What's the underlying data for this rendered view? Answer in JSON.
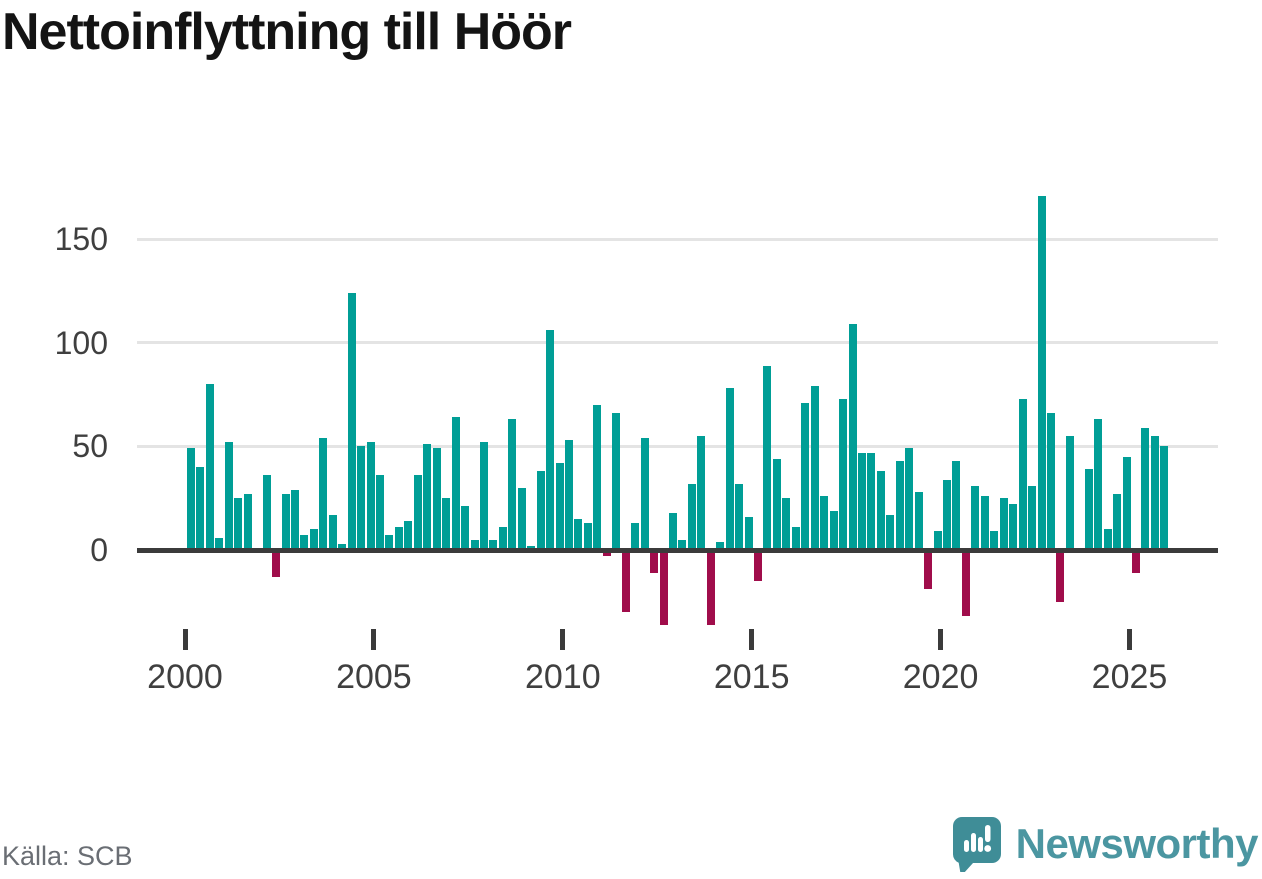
{
  "title": "Nettoinflyttning till Höör",
  "source": "Källa: SCB",
  "branding": {
    "name": "Newsworthy",
    "icon": "speech-bubble-bar-chart-exclamation-icon",
    "text_color": "#4b96a1",
    "bubble_color": "#3f8d97"
  },
  "colors": {
    "positive_bar": "#009e96",
    "negative_bar": "#a00d4b",
    "axis": "#3b3b3b",
    "gridline": "#e4e4e4",
    "tick_label": "#3f3f3f"
  },
  "chart_data": {
    "type": "bar",
    "title": "Nettoinflyttning till Höör",
    "x_unit": "quarter",
    "start_year": 2000,
    "quarters_per_year": 4,
    "xticks": [
      2000,
      2005,
      2010,
      2015,
      2020,
      2025
    ],
    "yticks": [
      0,
      50,
      100,
      150
    ],
    "ylim": [
      -40,
      175
    ],
    "grid": true,
    "legend": "none",
    "series": [
      {
        "name": "Nettoinflyttning",
        "values": [
          49,
          40,
          80,
          6,
          52,
          25,
          27,
          0,
          36,
          -13,
          27,
          29,
          7,
          10,
          54,
          17,
          3,
          124,
          50,
          52,
          36,
          7,
          11,
          14,
          36,
          51,
          49,
          25,
          64,
          21,
          5,
          52,
          5,
          11,
          63,
          30,
          2,
          38,
          106,
          42,
          53,
          15,
          13,
          70,
          -3,
          66,
          -30,
          13,
          54,
          -11,
          -36,
          18,
          5,
          32,
          55,
          -36,
          4,
          78,
          32,
          16,
          -15,
          89,
          44,
          25,
          11,
          71,
          79,
          26,
          19,
          73,
          109,
          47,
          47,
          38,
          17,
          43,
          49,
          28,
          -19,
          9,
          34,
          43,
          -32,
          31,
          26,
          9,
          25,
          22,
          73,
          31,
          171,
          66,
          -25,
          55,
          0,
          39,
          63,
          10,
          27,
          45,
          -11,
          59,
          55,
          50
        ]
      }
    ]
  }
}
